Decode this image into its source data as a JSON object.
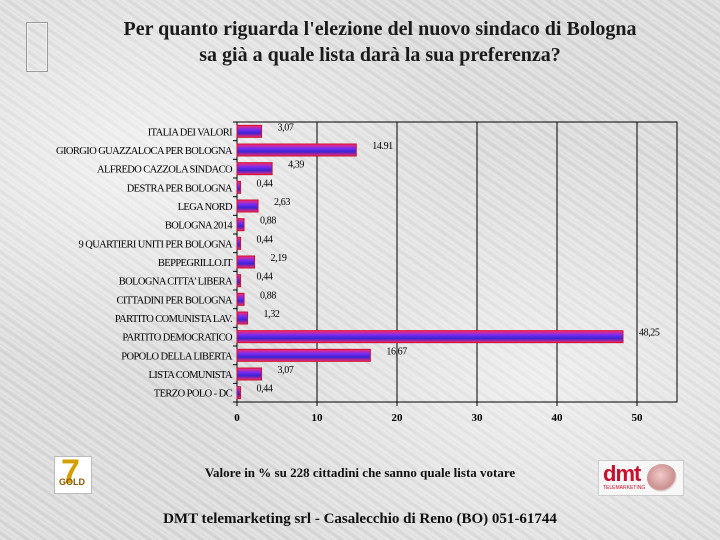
{
  "title": {
    "line1": "Per quanto riguarda l'elezione del nuovo sindaco di Bologna",
    "line2": "sa già a quale lista darà la sua preferenza?"
  },
  "footnote": "Valore in % su 228 cittadini che sanno quale lista votare",
  "footer": "DMT telemarketing srl  - Casalecchio di Reno (BO) 051-61744",
  "chart_data": {
    "type": "bar",
    "orientation": "horizontal",
    "categories": [
      "ITALIA DEI VALORI",
      "GIORGIO GUAZZALOCA PER BOLOGNA",
      "ALFREDO CAZZOLA SINDACO",
      "DESTRA PER BOLOGNA",
      "LEGA NORD",
      "BOLOGNA 2014",
      "9 QUARTIERI UNITI PER BOLOGNA",
      "BEPPEGRILLO.IT",
      "BOLOGNA CITTA' LIBERA",
      "CITTADINI PER BOLOGNA",
      "PARTITO COMUNISTA LAV.",
      "PARTITO DEMOCRATICO",
      "POPOLO DELLA LIBERTA",
      "LISTA COMUNISTA",
      "TERZO POLO - DC"
    ],
    "values": [
      3.07,
      14.91,
      4.39,
      0.44,
      2.63,
      0.88,
      0.44,
      2.19,
      0.44,
      0.88,
      1.32,
      48.25,
      16.67,
      3.07,
      0.44
    ],
    "value_labels": [
      "3,07",
      "14.91",
      "4,39",
      "0,44",
      "2,63",
      "0,88",
      "0,44",
      "2,19",
      "0,44",
      "0,88",
      "1,32",
      "48,25",
      "16,67",
      "3,07",
      "0,44"
    ],
    "xticks": [
      0,
      10,
      20,
      30,
      40,
      50
    ],
    "xlim": [
      0,
      55
    ],
    "grid": true,
    "colors": {
      "bar_edge": "#cc1133",
      "bar_fill": "#4a2bd8",
      "bar_hi": "#ff2a6a"
    }
  }
}
